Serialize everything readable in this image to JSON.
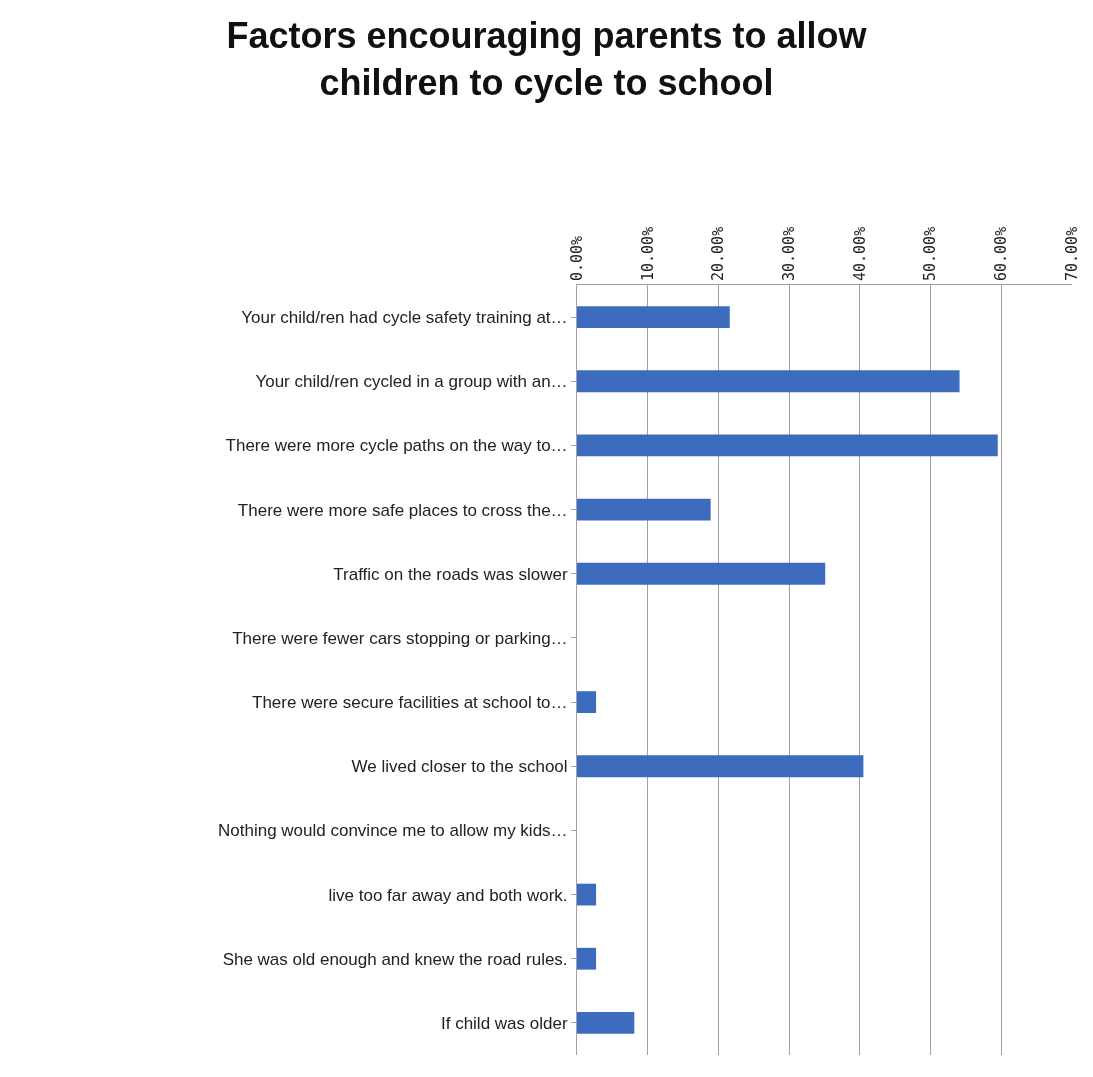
{
  "chart_data": {
    "type": "bar",
    "orientation": "horizontal",
    "title": "Factors encouraging parents to allow children to cycle to school",
    "categories": [
      "Your child/ren had cycle safety training at…",
      "Your child/ren cycled in a group with an…",
      "There were more cycle paths on the way to…",
      "There were more safe places to cross the…",
      "Traffic on the roads was slower",
      "There were fewer cars stopping or parking…",
      "There were secure facilities at school to…",
      "We lived closer to the school",
      "Nothing would convince me to allow my kids…",
      "live too far away and both work.",
      "She was old enough and knew the road rules.",
      "If child was older"
    ],
    "values": [
      21.6,
      54.1,
      59.5,
      18.9,
      35.1,
      0,
      2.7,
      40.5,
      0,
      2.7,
      2.7,
      8.1
    ],
    "color": "#3d6cbf",
    "xlim": [
      0,
      70
    ],
    "xticks": [
      {
        "value": 0,
        "label": "0.00%"
      },
      {
        "value": 10,
        "label": "10.00%"
      },
      {
        "value": 20,
        "label": "20.00%"
      },
      {
        "value": 30,
        "label": "30.00%"
      },
      {
        "value": 40,
        "label": "40.00%"
      },
      {
        "value": 50,
        "label": "50.00%"
      },
      {
        "value": 60,
        "label": "60.00%"
      },
      {
        "value": 70,
        "label": "70.00%"
      }
    ],
    "grid": "x"
  }
}
